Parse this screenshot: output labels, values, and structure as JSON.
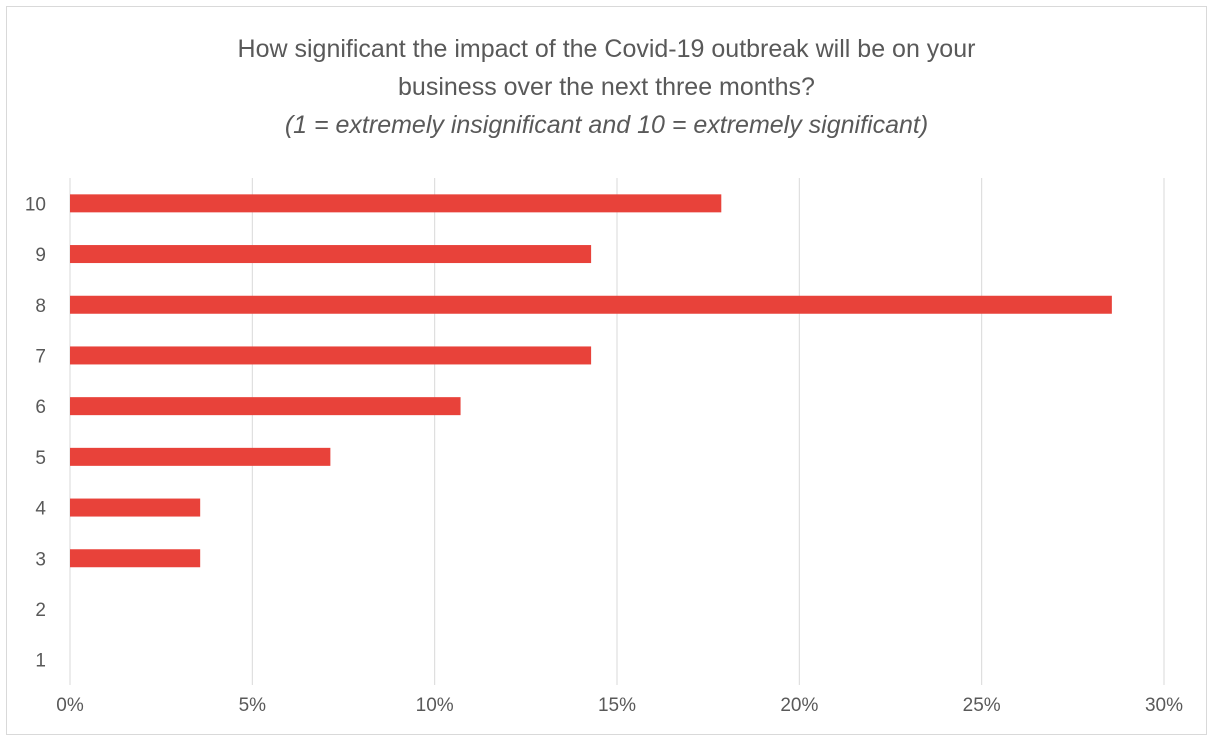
{
  "chart_data": {
    "type": "bar",
    "orientation": "horizontal",
    "title": "How significant the impact of the Covid-19 outbreak will be on your business over the next three months?",
    "title_lines": [
      "How significant the impact of the Covid-19 outbreak will be on your",
      "business over the next three months?"
    ],
    "subtitle": "(1 = extremely insignificant and 10 = extremely significant)",
    "categories": [
      "10",
      "9",
      "8",
      "7",
      "6",
      "5",
      "4",
      "3",
      "2",
      "1"
    ],
    "values": [
      17.86,
      14.29,
      28.57,
      14.29,
      10.71,
      7.14,
      3.57,
      3.57,
      0,
      0
    ],
    "unit": "%",
    "xlim": [
      0,
      30
    ],
    "x_ticks": [
      "0%",
      "5%",
      "10%",
      "15%",
      "20%",
      "25%",
      "30%"
    ],
    "x_tick_values": [
      0,
      5,
      10,
      15,
      20,
      25,
      30
    ],
    "grid": true,
    "legend": "none",
    "bar_color": "#e8423a",
    "grid_color": "#d9d9d9",
    "text_color": "#595959"
  }
}
